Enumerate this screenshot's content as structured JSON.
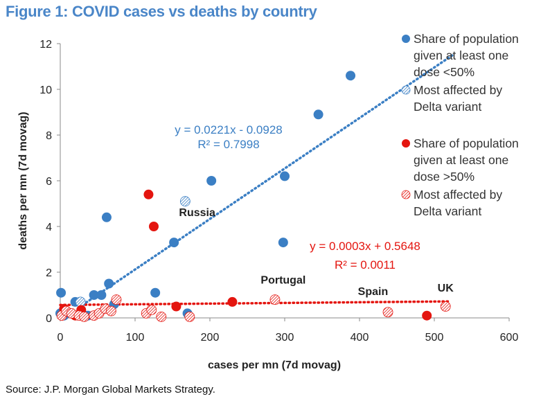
{
  "title": "Figure 1: COVID cases vs deaths by country",
  "source": "Source: J.P. Morgan Global Markets Strategy.",
  "colors": {
    "blue": "#3b7fc4",
    "red": "#e4150f",
    "title": "#4a86c8"
  },
  "chart_data": {
    "type": "scatter",
    "xlabel": "cases per mn (7d movag)",
    "ylabel": "deaths per mn (7d movag)",
    "xlim": [
      0,
      600
    ],
    "ylim": [
      0,
      12
    ],
    "xticks": [
      0,
      100,
      200,
      300,
      400,
      500,
      600
    ],
    "yticks": [
      0,
      2,
      4,
      6,
      8,
      10,
      12
    ],
    "grid": false,
    "legend_position": "right",
    "series": [
      {
        "name": "Share of population given at least one dose <50%",
        "color": "#3b7fc4",
        "style": "solid",
        "points": [
          [
            0,
            0.2
          ],
          [
            1,
            1.1
          ],
          [
            5,
            0.1
          ],
          [
            20,
            0.7
          ],
          [
            28,
            0.3
          ],
          [
            37,
            0.1
          ],
          [
            45,
            1.0
          ],
          [
            55,
            1.0
          ],
          [
            62,
            4.4
          ],
          [
            65,
            1.5
          ],
          [
            72,
            0.6
          ],
          [
            127,
            1.1
          ],
          [
            152,
            3.3
          ],
          [
            170,
            0.2
          ],
          [
            202,
            6.0
          ],
          [
            298,
            3.3
          ],
          [
            300,
            6.2
          ],
          [
            345,
            8.9
          ],
          [
            388,
            10.6
          ]
        ]
      },
      {
        "name": "Most affected by Delta variant",
        "color": "#3b7fc4",
        "style": "hatched",
        "points": [
          [
            27,
            0.7
          ],
          [
            167,
            5.1
          ]
        ]
      },
      {
        "name": "Share of population given at least one dose >50%",
        "color": "#e4150f",
        "style": "solid",
        "points": [
          [
            5,
            0.4
          ],
          [
            20,
            0.1
          ],
          [
            28,
            0.35
          ],
          [
            118,
            5.4
          ],
          [
            125,
            4.0
          ],
          [
            155,
            0.5
          ],
          [
            230,
            0.7
          ],
          [
            490,
            0.1
          ]
        ]
      },
      {
        "name": "Most affected by Delta variant",
        "color": "#e4150f",
        "style": "hatched",
        "points": [
          [
            2,
            0.1
          ],
          [
            8,
            0.3
          ],
          [
            15,
            0.2
          ],
          [
            25,
            0.1
          ],
          [
            32,
            0.05
          ],
          [
            45,
            0.1
          ],
          [
            52,
            0.2
          ],
          [
            60,
            0.4
          ],
          [
            68,
            0.3
          ],
          [
            75,
            0.8
          ],
          [
            115,
            0.2
          ],
          [
            122,
            0.35
          ],
          [
            135,
            0.05
          ],
          [
            173,
            0.05
          ],
          [
            287,
            0.8
          ],
          [
            438,
            0.25
          ],
          [
            515,
            0.5
          ]
        ]
      }
    ],
    "trendlines": [
      {
        "color": "#3b7fc4",
        "slope": 0.0221,
        "intercept": -0.0928,
        "x_range": [
          30,
          525
        ],
        "equation": "y = 0.0221x - 0.0928",
        "r2": "R² = 0.7998"
      },
      {
        "color": "#e4150f",
        "slope": 0.0003,
        "intercept": 0.5648,
        "x_range": [
          0,
          520
        ],
        "equation": "y = 0.0003x + 0.5648",
        "r2": "R² = 0.0011"
      }
    ],
    "annotations": [
      {
        "text": "Russia",
        "x": 183,
        "y": 4.45
      },
      {
        "text": "Portugal",
        "x": 298,
        "y": 1.5
      },
      {
        "text": "Spain",
        "x": 418,
        "y": 1.0
      },
      {
        "text": "UK",
        "x": 515,
        "y": 1.15
      }
    ],
    "legend": [
      {
        "lines": [
          "Share of population",
          "given at least one",
          "dose <50%"
        ],
        "color": "#3b7fc4",
        "style": "solid"
      },
      {
        "lines": [
          "Most affected by",
          "Delta variant"
        ],
        "color": "#3b7fc4",
        "style": "hatched"
      },
      {
        "lines": [
          "Share of population",
          "given at least one",
          "dose >50%"
        ],
        "color": "#e4150f",
        "style": "solid"
      },
      {
        "lines": [
          "Most affected by",
          "Delta variant"
        ],
        "color": "#e4150f",
        "style": "hatched"
      }
    ]
  }
}
